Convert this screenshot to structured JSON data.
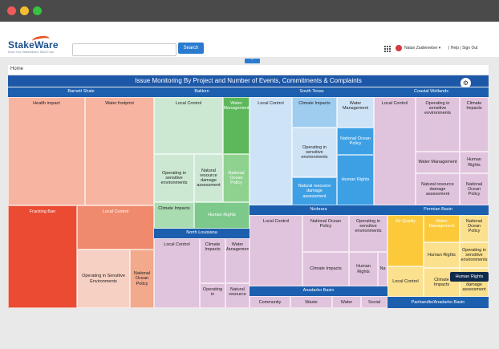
{
  "window": {
    "controls": [
      "close",
      "minimize",
      "maximize"
    ],
    "colors": {
      "close": "#ef5a58",
      "minimize": "#f4bd2f",
      "maximize": "#37c23f"
    }
  },
  "header": {
    "logo": "StakeWare",
    "tagline": "Know Your Stakeholders. Build Trust.",
    "search_placeholder": "",
    "search_button": "Search",
    "user": "Natan Zaidemeber",
    "help": "Help",
    "signout": "Sign Out",
    "collapse_icon": "chevron-up-icon"
  },
  "breadcrumb": "Home",
  "chart_title": "Issue Monitoring By Project and Number of Events, Commitments & Complaints",
  "treemap": {
    "groups": [
      "Barnett Shale",
      "Bakken",
      "South Texas",
      "Coastal Wetlands",
      "Niobrara",
      "Permian Basin",
      "North Louisiana",
      "Anadarko Basin",
      "Panhandle/Anadarko Basin"
    ],
    "cells": [
      "Health impact",
      "Water footprint",
      "Fracking Ban",
      "Local Control",
      "Operating in Sensitive Environments",
      "National Ocean Policy",
      "Local Control",
      "Water Management",
      "Operating in sensitive environments",
      "Natural resource damage assessment",
      "National Ocean Policy",
      "Climate Impacts",
      "Human Rights",
      "Local Control",
      "Climate Impacts",
      "Water Management",
      "Operating in sensitive environments",
      "National Ocean Policy",
      "Natural resource damage assessment",
      "Human Rights",
      "Local Control",
      "Operating in sensitive environments",
      "Climate Impacts",
      "Water Management",
      "Human Rights",
      "Natural resource damage assessment",
      "National Ocean Policy",
      "Local Control",
      "National Ocean Policy",
      "Operating in sensitive environments",
      "Climate Impacts",
      "Human Rights",
      "Na",
      "Air Quality",
      "Water Management",
      "Human Rights",
      "Local Control",
      "Climate Impacts",
      "National Ocean Policy",
      "Operating in sensitive environments",
      "Natural resource damage assessment",
      "Local Control",
      "Climate Impacts",
      "Water Management",
      "Operating in",
      "Natural resource",
      "Community",
      "Waste",
      "Water",
      "Social",
      "Human Rights"
    ]
  },
  "colors": {
    "title_bar": "#1d57a8",
    "group_header": "#1b5fae"
  }
}
